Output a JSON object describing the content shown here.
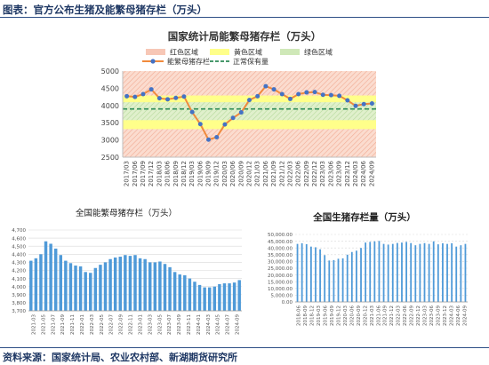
{
  "figure": {
    "title": "图表：官方公布生猪及能繁母猪存栏（万头）",
    "source": "资料来源：国家统计局、农业农村部、新湖期货研究所"
  },
  "colors": {
    "red_band": "#f7c7b6",
    "yellow_band": "#ffff8a",
    "green_band": "#cfe8b8",
    "sow_line": "#f08a3c",
    "sow_marker": "#4472c4",
    "normal_line": "#2e8b57",
    "bar_blue": "#4f9ad8",
    "grid": "#d9d9d9",
    "header": "#1f3864"
  },
  "chart_data": [
    {
      "type": "line",
      "title": "国家统计局能繁母猪存栏（万头）",
      "xlabel": "",
      "ylabel": "",
      "ylim": [
        2500,
        5000
      ],
      "yticks": [
        2500,
        3000,
        3500,
        4000,
        4500,
        5000
      ],
      "x": [
        "2017/03",
        "2017/06",
        "2017/09",
        "2017/12",
        "2018/03",
        "2018/06",
        "2018/09",
        "2018/12",
        "2019/03",
        "2019/06",
        "2019/09",
        "2019/12",
        "2020/03",
        "2020/06",
        "2020/09",
        "2020/12",
        "2021/03",
        "2021/06",
        "2021/09",
        "2021/12",
        "2022/03",
        "2022/06",
        "2022/09",
        "2022/12",
        "2023/03",
        "2023/06",
        "2023/09",
        "2023/12",
        "2024/03",
        "2024/06",
        "2024/09"
      ],
      "series": [
        {
          "name": "能繁母猪存栏",
          "values": [
            4270,
            4250,
            4330,
            4470,
            4210,
            4180,
            4220,
            4260,
            3810,
            3460,
            3010,
            3080,
            3450,
            3640,
            3800,
            4160,
            4270,
            4560,
            4470,
            4330,
            4190,
            4330,
            4380,
            4390,
            4310,
            4300,
            4280,
            4150,
            3990,
            4040,
            4060
          ]
        }
      ],
      "bands": [
        {
          "name": "红色区域",
          "from": 2500,
          "to": 5000,
          "color": "#f7c7b6"
        },
        {
          "name": "黄色区域",
          "from": 3315,
          "to": 4290,
          "color": "#ffff8a"
        },
        {
          "name": "绿色区域",
          "from": 3575,
          "to": 4095,
          "color": "#cfe8b8"
        }
      ],
      "reference": {
        "name": "正常保有量",
        "value": 3900
      },
      "legend": [
        "红色区域",
        "黄色区域",
        "绿色区域",
        "能繁母猪存栏",
        "正常保有量"
      ],
      "legend_placement": "top",
      "grid": false
    },
    {
      "type": "bar",
      "title": "全国能繁母猪存栏（万头）",
      "xlabel": "",
      "ylabel": "",
      "ylim": [
        3700,
        4700
      ],
      "yticks": [
        3700,
        3800,
        3900,
        4000,
        4100,
        4200,
        4300,
        4400,
        4500,
        4600,
        4700
      ],
      "ytick_labels": [
        "3,700",
        "3,800",
        "3,900",
        "4,000",
        "4,100",
        "4,200",
        "4,300",
        "4,400",
        "4,500",
        "4,600",
        "4,700"
      ],
      "xtick_labels": [
        "2021-03",
        "2021-05",
        "2021-07",
        "2021-09",
        "2021-11",
        "2022-01",
        "2022-03",
        "2022-05",
        "2022-07",
        "2022-09",
        "2022-11",
        "2023-01",
        "2023-03",
        "2023-05",
        "2023-07",
        "2023-09",
        "2023-11",
        "2024-01",
        "2024-03",
        "2024-05",
        "2024-07",
        "2024-09"
      ],
      "values": [
        4320,
        4350,
        4400,
        4560,
        4530,
        4470,
        4390,
        4320,
        4290,
        4260,
        4250,
        4180,
        4170,
        4230,
        4270,
        4300,
        4340,
        4360,
        4370,
        4390,
        4380,
        4390,
        4350,
        4340,
        4300,
        4300,
        4310,
        4280,
        4240,
        4180,
        4150,
        4140,
        4100,
        4060,
        4020,
        3990,
        3990,
        4000,
        4030,
        4040,
        4040,
        4050,
        4080
      ],
      "grid": true
    },
    {
      "type": "bar",
      "title": "全国生猪存栏量（万头）",
      "xlabel": "",
      "ylabel": "",
      "ylim": [
        0,
        50000
      ],
      "yticks": [
        0,
        5000,
        10000,
        15000,
        20000,
        25000,
        30000,
        35000,
        40000,
        45000,
        50000
      ],
      "ytick_labels": [
        "0.00",
        "5,000.00",
        "10,000.00",
        "15,000.00",
        "20,000.00",
        "25,000.00",
        "30,000.00",
        "35,000.00",
        "40,000.00",
        "45,000.00",
        "50,000.00"
      ],
      "xtick_labels": [
        "2018-06",
        "2018-09",
        "2018-12",
        "2019-03",
        "2019-06",
        "2019-09",
        "2019-12",
        "2020-03",
        "2020-06",
        "2020-09",
        "2020-12",
        "2021-03",
        "2021-06",
        "2021-09",
        "2021-12",
        "2022-03",
        "2022-06",
        "2022-09",
        "2022-12",
        "2023-03",
        "2023-06",
        "2023-09",
        "2023-12",
        "2024-03",
        "2024-06",
        "2024-09"
      ],
      "values": [
        43000,
        43500,
        42800,
        41000,
        40500,
        39000,
        34700,
        30700,
        31000,
        32000,
        32300,
        35000,
        37000,
        38000,
        40000,
        44000,
        44500,
        44900,
        45200,
        43000,
        42500,
        43000,
        43700,
        44000,
        44500,
        43600,
        42000,
        43000,
        43600,
        43000,
        44900,
        42700,
        43500,
        43000,
        43500,
        41000,
        42000,
        43000
      ],
      "grid": true
    }
  ]
}
